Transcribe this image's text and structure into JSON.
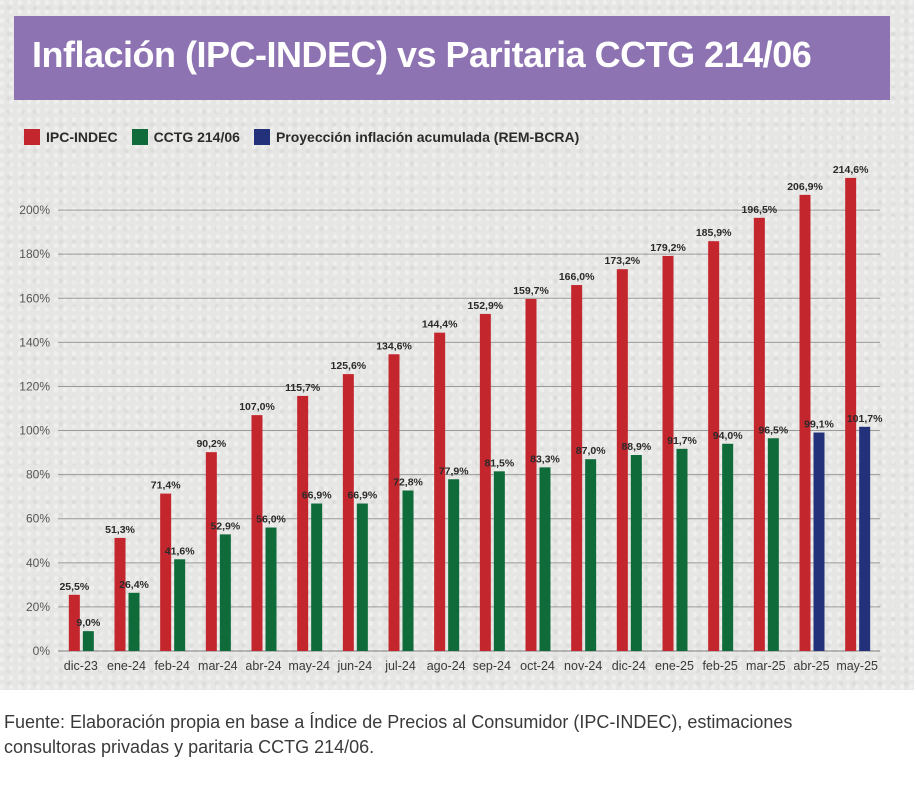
{
  "title": "Inflación (IPC-INDEC) vs Paritaria CCTG 214/06",
  "legend": [
    {
      "label": "IPC-INDEC",
      "color": "#c4262e"
    },
    {
      "label": "CCTG 214/06",
      "color": "#0f6b3a"
    },
    {
      "label": "Proyección inflación acumulada (REM-BCRA)",
      "color": "#23307a"
    }
  ],
  "chart_data": {
    "type": "bar",
    "categories": [
      "dic-23",
      "ene-24",
      "feb-24",
      "mar-24",
      "abr-24",
      "may-24",
      "jun-24",
      "jul-24",
      "ago-24",
      "sep-24",
      "oct-24",
      "nov-24",
      "dic-24",
      "ene-25",
      "feb-25",
      "mar-25",
      "abr-25",
      "may-25"
    ],
    "series": [
      {
        "name": "IPC-INDEC",
        "color": "#c4262e",
        "values": [
          25.5,
          51.3,
          71.4,
          90.2,
          107.0,
          115.7,
          125.6,
          134.6,
          144.4,
          152.9,
          159.7,
          166.0,
          173.2,
          179.2,
          185.9,
          196.5,
          206.9,
          214.6
        ],
        "labels": [
          "25,5%",
          "51,3%",
          "71,4%",
          "90,2%",
          "107,0%",
          "115,7%",
          "125,6%",
          "134,6%",
          "144,4%",
          "152,9%",
          "159,7%",
          "166,0%",
          "173,2%",
          "179,2%",
          "185,9%",
          "196,5%",
          "206,9%",
          "214,6%"
        ]
      },
      {
        "name": "CCTG 214/06 / Proyección inflación acumulada (REM-BCRA)",
        "values": [
          9.0,
          26.4,
          41.6,
          52.9,
          56.0,
          66.9,
          66.9,
          72.8,
          77.9,
          81.5,
          83.3,
          87.0,
          88.9,
          91.7,
          94.0,
          96.5,
          99.1,
          101.7
        ],
        "labels": [
          "9,0%",
          "26,4%",
          "41,6%",
          "52,9%",
          "56,0%",
          "66,9%",
          "66,9%",
          "72,8%",
          "77,9%",
          "81,5%",
          "83,3%",
          "87,0%",
          "88,9%",
          "91,7%",
          "94,0%",
          "96,5%",
          "99,1%",
          "101,7%"
        ],
        "colors": [
          "#0f6b3a",
          "#0f6b3a",
          "#0f6b3a",
          "#0f6b3a",
          "#0f6b3a",
          "#0f6b3a",
          "#0f6b3a",
          "#0f6b3a",
          "#0f6b3a",
          "#0f6b3a",
          "#0f6b3a",
          "#0f6b3a",
          "#0f6b3a",
          "#0f6b3a",
          "#0f6b3a",
          "#0f6b3a",
          "#23307a",
          "#23307a"
        ]
      }
    ],
    "yticks": [
      0,
      20,
      40,
      60,
      80,
      100,
      120,
      140,
      160,
      180,
      200
    ],
    "ytick_labels": [
      "0%",
      "20%",
      "40%",
      "60%",
      "80%",
      "100%",
      "120%",
      "140%",
      "160%",
      "180%",
      "200%"
    ],
    "ylim": [
      0,
      220
    ],
    "grid": true,
    "legend_position": "top-left"
  },
  "footnote": "Fuente: Elaboración propia en base a Índice de Precios al Consumidor (IPC-INDEC), estimaciones consultoras privadas y paritaria CCTG 214/06."
}
